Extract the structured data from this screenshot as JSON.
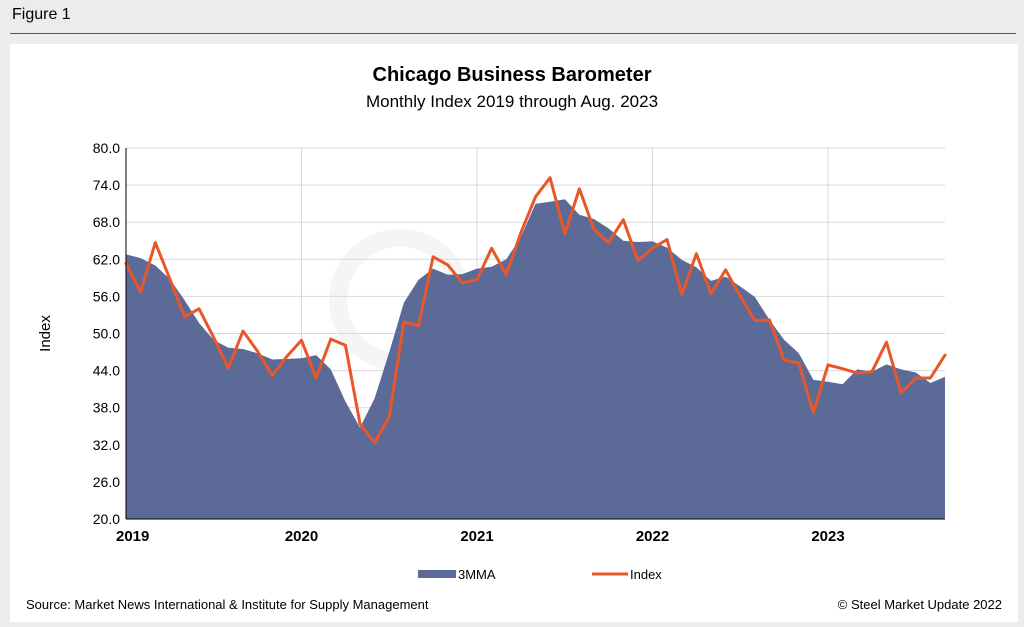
{
  "figure_label": "Figure 1",
  "source": "Source: Market News International & Institute for Supply Management",
  "copyright": "© Steel Market Update 2022",
  "colors": {
    "area": "#5b6a97",
    "line": "#e8572a",
    "grid": "#d9d9d9"
  },
  "chart_data": {
    "type": "area",
    "title": "Chicago Business Barometer",
    "subtitle": "Monthly Index 2019 through Aug. 2023",
    "ylabel": "Index",
    "ylim": [
      20,
      80
    ],
    "yticks": [
      "80.0",
      "74.0",
      "68.0",
      "62.0",
      "56.0",
      "50.0",
      "44.0",
      "38.0",
      "32.0",
      "26.0",
      "20.0"
    ],
    "ytick_values": [
      80,
      74,
      68,
      62,
      56,
      50,
      44,
      38,
      32,
      26,
      20
    ],
    "xticks": [
      "2019",
      "2020",
      "2021",
      "2022",
      "2023"
    ],
    "xtick_month_index": [
      0,
      12,
      24,
      36,
      48
    ],
    "legend": [
      "3MMA",
      "Index"
    ],
    "series": [
      {
        "name": "3MMA",
        "type": "area",
        "values": [
          62.8,
          62.2,
          61.0,
          58.8,
          55.4,
          51.7,
          48.9,
          47.7,
          47.5,
          46.8,
          45.8,
          45.9,
          46.0,
          46.5,
          44.2,
          39.0,
          34.8,
          39.5,
          47.0,
          55.0,
          58.7,
          60.5,
          59.5,
          59.6,
          60.5,
          60.8,
          62.0,
          65.6,
          71.0,
          71.3,
          71.7,
          69.2,
          68.5,
          67.0,
          65.0,
          64.8,
          64.9,
          63.9,
          61.9,
          60.7,
          58.5,
          59.2,
          57.6,
          55.9,
          52.2,
          49.0,
          46.8,
          42.5,
          42.2,
          41.8,
          44.2,
          43.8,
          45.0,
          44.2,
          43.7,
          42.0,
          43.0
        ]
      },
      {
        "name": "Index",
        "type": "line",
        "values": [
          61.3,
          56.7,
          64.7,
          58.8,
          52.7,
          54.0,
          49.3,
          44.4,
          50.4,
          47.1,
          43.2,
          46.3,
          48.9,
          42.8,
          49.1,
          48.1,
          35.4,
          32.3,
          36.6,
          51.9,
          51.2,
          62.4,
          61.1,
          58.2,
          58.7,
          63.8,
          59.5,
          66.3,
          72.1,
          75.2,
          66.1,
          73.4,
          66.8,
          64.7,
          68.4,
          61.8,
          63.8,
          65.2,
          56.3,
          62.9,
          56.4,
          60.3,
          56.0,
          52.1,
          52.2,
          45.7,
          45.2,
          37.2,
          44.9,
          44.3,
          43.6,
          43.8,
          48.6,
          40.4,
          42.8,
          42.8,
          46.5
        ]
      }
    ]
  }
}
